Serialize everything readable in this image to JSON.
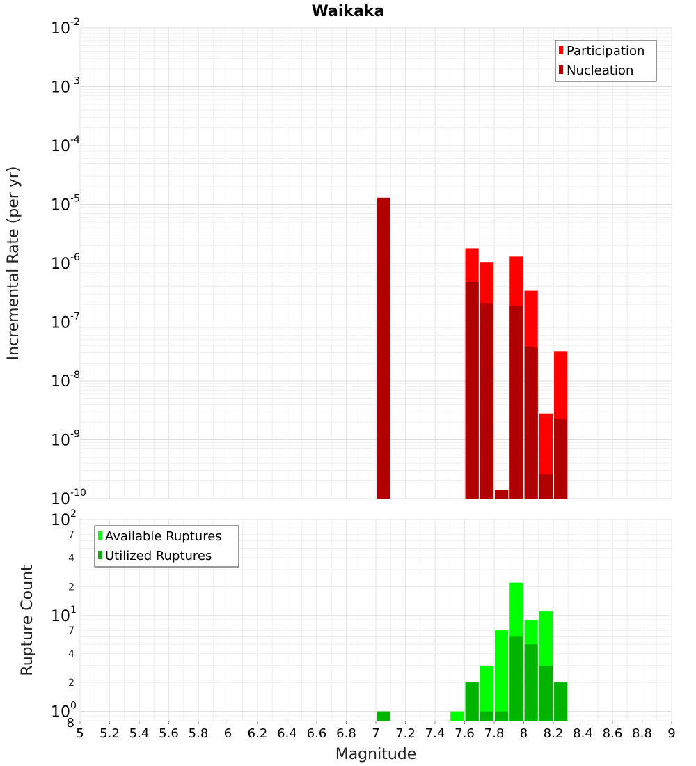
{
  "chart_data": [
    {
      "type": "bar",
      "title": "Waikaka",
      "ylabel": "Incremental Rate (per yr)",
      "xlabel": "",
      "yscale": "log",
      "ylim": [
        1e-10,
        0.01
      ],
      "xlim": [
        5,
        9
      ],
      "bar_width": 0.1,
      "grid": true,
      "legend_position": "top-right",
      "y_ticks": [
        {
          "base": "10",
          "exp": "-10"
        },
        {
          "base": "10",
          "exp": "-9"
        },
        {
          "base": "10",
          "exp": "-8"
        },
        {
          "base": "10",
          "exp": "-7"
        },
        {
          "base": "10",
          "exp": "-6"
        },
        {
          "base": "10",
          "exp": "-5"
        },
        {
          "base": "10",
          "exp": "-4"
        },
        {
          "base": "10",
          "exp": "-3"
        },
        {
          "base": "10",
          "exp": "-2"
        }
      ],
      "series": [
        {
          "name": "Participation",
          "color": "#ff0000",
          "x": [
            7.05,
            7.65,
            7.75,
            7.85,
            7.95,
            8.05,
            8.15,
            8.25
          ],
          "values": [
            1.3e-05,
            1.8e-06,
            1.05e-06,
            1.4e-10,
            1.3e-06,
            3.4e-07,
            2.8e-09,
            3.2e-08
          ]
        },
        {
          "name": "Nucleation",
          "color": "#b00000",
          "x": [
            7.05,
            7.65,
            7.75,
            7.85,
            7.95,
            8.05,
            8.15,
            8.25
          ],
          "values": [
            1.3e-05,
            4.8e-07,
            2.1e-07,
            1.4e-10,
            1.9e-07,
            3.7e-08,
            2.6e-10,
            2.3e-09
          ]
        }
      ]
    },
    {
      "type": "bar",
      "title": "",
      "ylabel": "Rupture Count",
      "xlabel": "Magnitude",
      "yscale": "log",
      "ylim": [
        0.8,
        100
      ],
      "xlim": [
        5,
        9
      ],
      "bar_width": 0.1,
      "grid": true,
      "legend_position": "top-left",
      "x_ticks": [
        "5",
        "5.2",
        "5.4",
        "5.6",
        "5.8",
        "6",
        "6.2",
        "6.4",
        "6.6",
        "6.8",
        "7",
        "7.2",
        "7.4",
        "7.6",
        "7.8",
        "8",
        "8.2",
        "8.4",
        "8.6",
        "8.8",
        "9"
      ],
      "y_major_ticks": [
        {
          "base": "10",
          "exp": "0"
        },
        {
          "base": "10",
          "exp": "1"
        },
        {
          "base": "10",
          "exp": "2"
        }
      ],
      "y_minor_ticks": [
        "8",
        "2",
        "4",
        "7",
        "2",
        "4",
        "7"
      ],
      "series": [
        {
          "name": "Available Ruptures",
          "color": "#00ff00",
          "x": [
            7.05,
            7.55,
            7.65,
            7.75,
            7.85,
            7.95,
            8.05,
            8.15,
            8.25
          ],
          "values": [
            1,
            1,
            2,
            3,
            7,
            22,
            9,
            11,
            2
          ]
        },
        {
          "name": "Utilized Ruptures",
          "color": "#00b400",
          "x": [
            7.05,
            7.65,
            7.75,
            7.85,
            7.95,
            8.05,
            8.15,
            8.25
          ],
          "values": [
            1,
            2,
            1,
            1,
            6,
            5,
            3,
            2
          ]
        }
      ]
    }
  ]
}
